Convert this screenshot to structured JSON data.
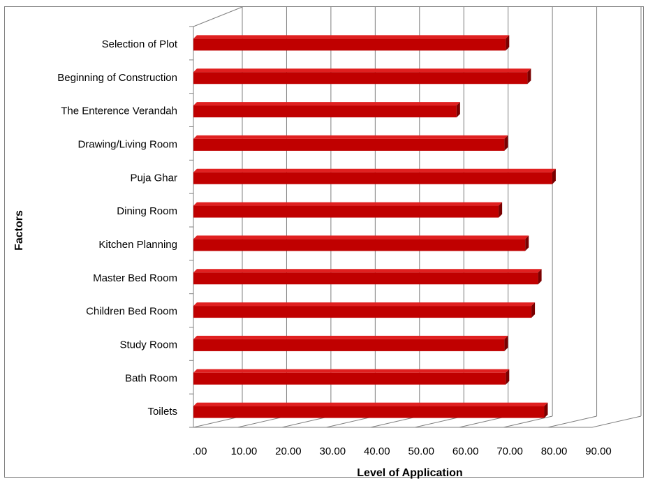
{
  "chart_data": {
    "type": "bar",
    "orientation": "horizontal",
    "categories": [
      "Selection of Plot",
      "Beginning of Construction",
      "The Enterence Verandah",
      "Drawing/Living Room",
      "Puja Ghar",
      "Dining Room",
      "Kitchen Planning",
      "Master Bed Room",
      "Children Bed Room",
      "Study Room",
      "Bath Room",
      "Toilets"
    ],
    "values": [
      70.5,
      75.4,
      59.4,
      70.2,
      81.0,
      68.9,
      74.9,
      77.8,
      76.3,
      70.2,
      70.5,
      79.2
    ],
    "xlim": [
      0,
      90
    ],
    "xticks": [
      ".00",
      "10.00",
      "20.00",
      "30.00",
      "40.00",
      "50.00",
      "60.00",
      "70.00",
      "80.00",
      "90.00"
    ],
    "xlabel": "Level of Application",
    "ylabel": "Factors",
    "grid": "vertical",
    "colors": {
      "bar": "#c00000",
      "bar_top": "#e02020",
      "bar_side": "#7a0000",
      "grid": "#7f7f7f"
    }
  }
}
